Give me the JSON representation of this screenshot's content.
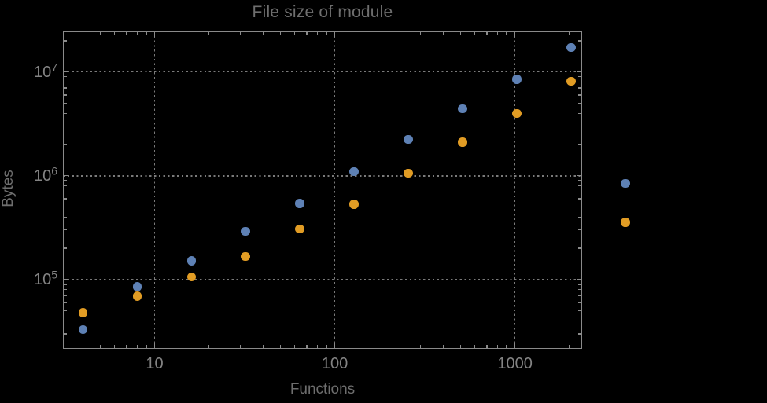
{
  "chart": {
    "title": "File size of module",
    "x_axis_label": "Functions",
    "y_axis_label": "Bytes"
  },
  "chart_data": {
    "type": "scatter",
    "title": "File size of module",
    "xlabel": "Functions",
    "ylabel": "Bytes",
    "x_scale": "log",
    "y_scale": "log",
    "legend": "none",
    "grid": {
      "style": "dotted",
      "x_values": [
        10,
        100,
        1000
      ],
      "y_values": [
        100000,
        1000000,
        10000000
      ]
    },
    "x_range": [
      3.1,
      2360
    ],
    "y_range": [
      21500,
      24600000
    ],
    "x": [
      4,
      8,
      16,
      32,
      64,
      128,
      256,
      512,
      1024,
      2048,
      4096
    ],
    "series": [
      {
        "name": "blue",
        "color": "#5e81b5",
        "values": [
          33000,
          85000,
          151000,
          292000,
          543000,
          1100000,
          2230000,
          4400000,
          8490000,
          17200000,
          840000
        ]
      },
      {
        "name": "orange",
        "color": "#e19c24",
        "values": [
          48000,
          69000,
          106000,
          167000,
          307000,
          533000,
          1060000,
          2100000,
          3970000,
          8150000,
          355000
        ]
      }
    ],
    "x_major_ticks": [
      {
        "value": 10,
        "label": "10"
      },
      {
        "value": 100,
        "label": "100"
      },
      {
        "value": 1000,
        "label": "1000"
      }
    ],
    "y_major_ticks": [
      {
        "value": 100000,
        "base": "10",
        "exp": "5"
      },
      {
        "value": 1000000,
        "base": "10",
        "exp": "6"
      },
      {
        "value": 10000000,
        "base": "10",
        "exp": "7"
      }
    ],
    "styles": {
      "background": "#000000",
      "frame_color": "#8a8a8a",
      "grid_color": "#7a7a7a",
      "title_color": "#6e6e6e",
      "axis_label_color": "#6e6e6e",
      "tick_label_color": "#838383"
    }
  }
}
